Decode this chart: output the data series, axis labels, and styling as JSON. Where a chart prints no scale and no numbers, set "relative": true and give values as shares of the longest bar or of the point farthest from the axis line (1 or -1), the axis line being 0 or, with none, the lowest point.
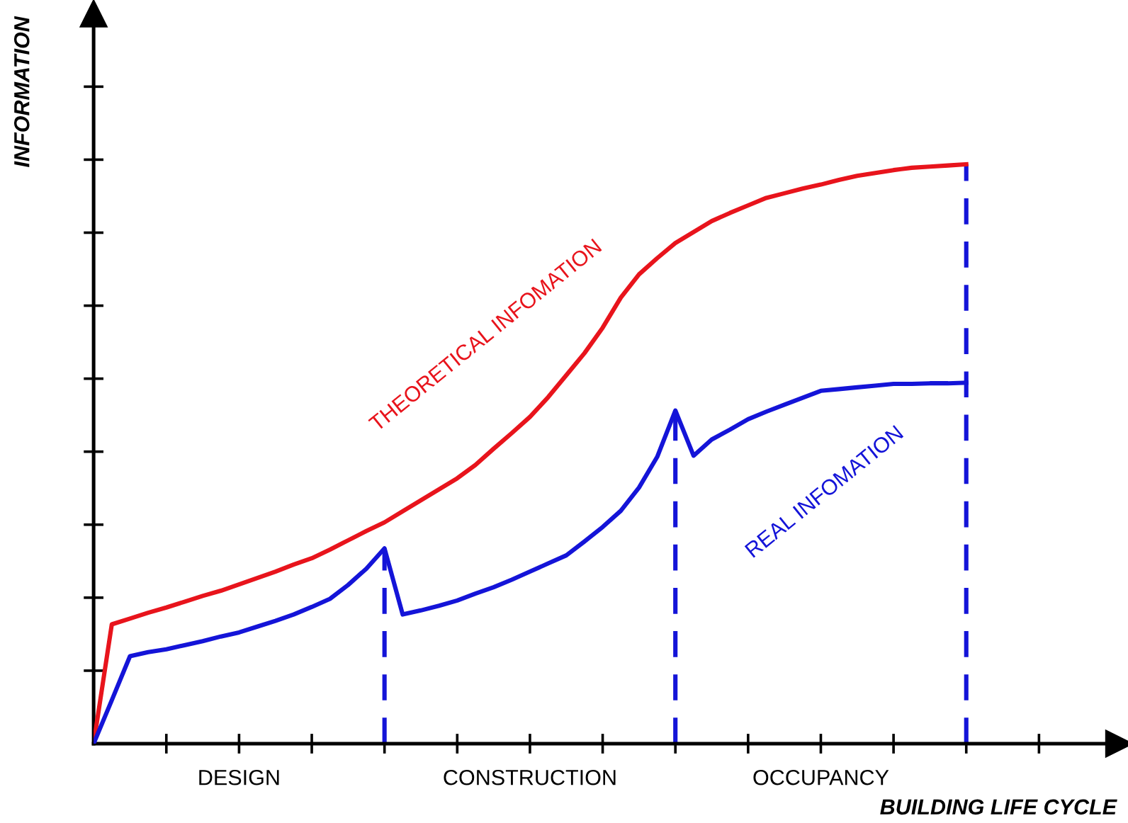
{
  "chart_data": {
    "type": "line",
    "relative": true,
    "xlabel": "BUILDING LIFE CYCLE",
    "ylabel": "INFORMATION",
    "categories": [
      null,
      null,
      null,
      null,
      null,
      null,
      null,
      null,
      "DESIGN",
      null,
      null,
      null,
      null,
      null,
      null,
      null,
      null,
      null,
      null,
      null,
      null,
      null,
      null,
      null,
      "CONSTRUCTION",
      null,
      null,
      null,
      null,
      null,
      null,
      null,
      null,
      null,
      null,
      null,
      null,
      null,
      null,
      null,
      "OCCUPANCY",
      null,
      null,
      null,
      null,
      null,
      null,
      null,
      null
    ],
    "grid": false,
    "legend": false,
    "marker": "none",
    "line_style": "solid",
    "series": [
      {
        "name": "THEORETICAL INFOMATION",
        "color": "#e8141c",
        "values": [
          0,
          0.206,
          0.216,
          0.226,
          0.235,
          0.245,
          0.255,
          0.264,
          0.275,
          0.286,
          0.297,
          0.309,
          0.32,
          0.335,
          0.351,
          0.367,
          0.382,
          0.401,
          0.42,
          0.439,
          0.458,
          0.481,
          0.509,
          0.536,
          0.564,
          0.598,
          0.636,
          0.674,
          0.718,
          0.77,
          0.81,
          0.838,
          0.864,
          0.883,
          0.902,
          0.916,
          0.929,
          0.942,
          0.95,
          0.958,
          0.965,
          0.973,
          0.98,
          0.985,
          0.99,
          0.994,
          0.996,
          0.998,
          1.0
        ]
      },
      {
        "name": "REAL INFOMATION",
        "color": "#1414d8",
        "values": [
          0,
          0.075,
          0.151,
          0.158,
          0.163,
          0.17,
          0.177,
          0.185,
          0.192,
          0.202,
          0.212,
          0.223,
          0.236,
          0.25,
          0.274,
          0.302,
          0.337,
          0.223,
          0.23,
          0.238,
          0.247,
          0.259,
          0.27,
          0.283,
          0.297,
          0.311,
          0.325,
          0.349,
          0.374,
          0.402,
          0.442,
          0.495,
          0.575,
          0.497,
          0.525,
          0.542,
          0.56,
          0.573,
          0.585,
          0.597,
          0.609,
          0.612,
          0.615,
          0.618,
          0.621,
          0.621,
          0.622,
          0.622,
          0.623
        ]
      }
    ]
  }
}
